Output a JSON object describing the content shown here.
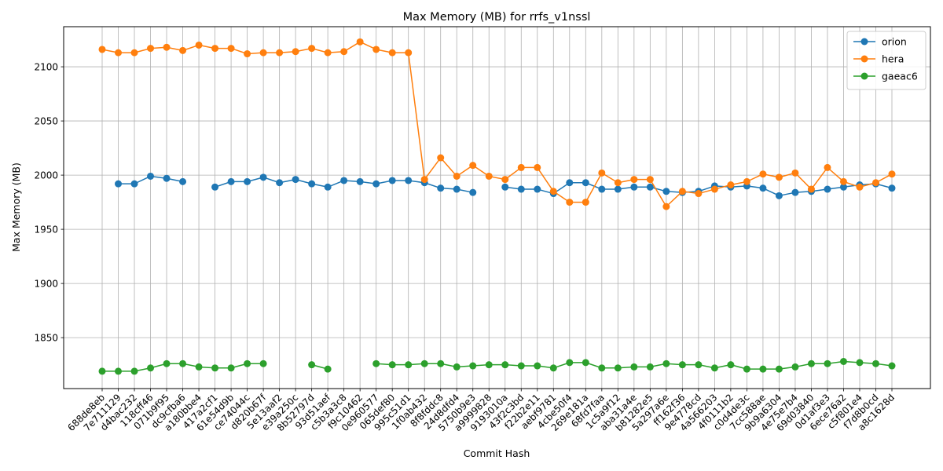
{
  "chart_data": {
    "type": "line",
    "title": "Max Memory (MB) for rrfs_v1nssl",
    "xlabel": "Commit Hash",
    "ylabel": "Max Memory (MB)",
    "ylim": [
      1803,
      2137
    ],
    "yticks": [
      1850,
      1900,
      1950,
      2000,
      2050,
      2100
    ],
    "grid": true,
    "legend_position": "upper-right",
    "categories": [
      "688de8eb",
      "7e711129",
      "d4bac232",
      "118cff46",
      "071b9f95",
      "dc9cfba6",
      "a180bbe4",
      "417a2cf1",
      "61e54d9b",
      "ce74044c",
      "d820b67f",
      "5e13aaf2",
      "e39a250c",
      "8b52797d",
      "93d51aef",
      "c5b3a3c8",
      "f9c10462",
      "0e960577",
      "065def80",
      "995c51d1",
      "1f0ab432",
      "8f8fddc8",
      "24d8dfd4",
      "5750b9e3",
      "a9999828",
      "9193010a",
      "43f2c3bd",
      "f22b2e11",
      "aebf9781",
      "4cbe50f4",
      "269e181a",
      "68fd7faa",
      "1c5a9f12",
      "aba31a4e",
      "b81282e5",
      "5a297a6e",
      "ff162f36",
      "9e4778cd",
      "4a566203",
      "4f0111b2",
      "c0d4de3c",
      "7cc588ae",
      "9b9a6304",
      "4e75e7b4",
      "69d03840",
      "0d1af3e3",
      "6ece76a2",
      "c5f801e4",
      "f7d8b0cd",
      "a8c1628d"
    ],
    "series": [
      {
        "name": "orion",
        "color": "#1f77b4",
        "values": [
          null,
          1992,
          1992,
          1999,
          1997,
          1994,
          null,
          1989,
          1994,
          1994,
          1998,
          1993,
          1996,
          1992,
          1989,
          1995,
          1994,
          1992,
          1995,
          1995,
          1993,
          1988,
          1987,
          1984,
          null,
          1989,
          1987,
          1987,
          1983,
          1993,
          1993,
          1987,
          1987,
          1989,
          1989,
          1985,
          1984,
          1985,
          1990,
          1989,
          1990,
          1988,
          1981,
          1984,
          1985,
          1987,
          1989,
          1991,
          1992,
          1988
        ]
      },
      {
        "name": "hera",
        "color": "#ff7f0e",
        "values": [
          2116,
          2113,
          2113,
          2117,
          2118,
          2115,
          2120,
          2117,
          2117,
          2112,
          2113,
          2113,
          2114,
          2117,
          2113,
          2114,
          2123,
          2116,
          2113,
          2113,
          1996,
          2016,
          1999,
          2009,
          1999,
          1996,
          2007,
          2007,
          1985,
          1975,
          1975,
          2002,
          1993,
          1996,
          1996,
          1971,
          1985,
          1983,
          1987,
          1991,
          1994,
          2001,
          1998,
          2002,
          1987,
          2007,
          1994,
          1989,
          1993,
          2001
        ]
      },
      {
        "name": "gaeac6",
        "color": "#2ca02c",
        "values": [
          1819,
          1819,
          1819,
          1822,
          1826,
          1826,
          1823,
          1822,
          1822,
          1826,
          1826,
          null,
          null,
          1825,
          1821,
          null,
          null,
          1826,
          1825,
          1825,
          1826,
          1826,
          1823,
          1824,
          1825,
          1825,
          1824,
          1824,
          1822,
          1827,
          1827,
          1822,
          1822,
          1823,
          1823,
          1826,
          1825,
          1825,
          1822,
          1825,
          1821,
          1821,
          1821,
          1823,
          1826,
          1826,
          1828,
          1827,
          1826,
          1824
        ]
      }
    ]
  }
}
